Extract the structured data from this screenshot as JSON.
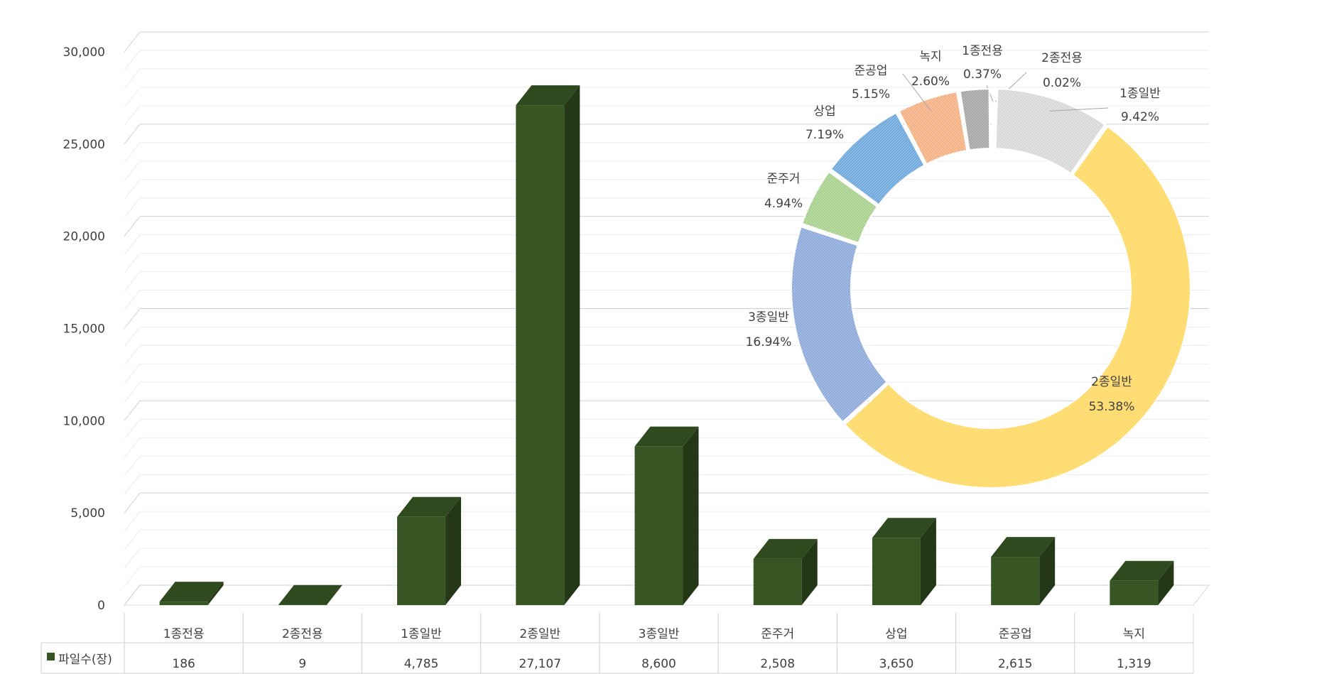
{
  "chart_data": [
    {
      "type": "bar",
      "style": "3d-column-with-data-table",
      "categories": [
        "1종전용",
        "2종전용",
        "1종일반",
        "2종일반",
        "3종일반",
        "준주거",
        "상업",
        "준공업",
        "녹지"
      ],
      "series": [
        {
          "name": "파일수(장)",
          "values": [
            186,
            9,
            4785,
            27107,
            8600,
            2508,
            3650,
            2615,
            1319
          ]
        }
      ],
      "value_labels": [
        "186",
        "9",
        "4,785",
        "27,107",
        "8,600",
        "2,508",
        "3,650",
        "2,615",
        "1,319"
      ],
      "ylim": [
        0,
        30000
      ],
      "yticks": [
        0,
        5000,
        10000,
        15000,
        20000,
        25000,
        30000
      ],
      "ytick_labels": [
        "0",
        "5,000",
        "10,000",
        "15,000",
        "20,000",
        "25,000",
        "30,000"
      ],
      "grid": true,
      "legend": "in-data-table",
      "colors": {
        "bar_front": "#375623",
        "bar_top": "#2f4a1e",
        "bar_side": "#243818"
      }
    },
    {
      "type": "pie",
      "style": "doughnut",
      "slices": [
        {
          "label": "1종전용",
          "value": 0.37,
          "pct": "0.37%",
          "color": "#9dc3e6"
        },
        {
          "label": "2종전용",
          "value": 0.02,
          "pct": "0.02%",
          "color": "#ddebf7"
        },
        {
          "label": "1종일반",
          "value": 9.42,
          "pct": "9.42%",
          "color": "#d9d9d9"
        },
        {
          "label": "2종일반",
          "value": 53.38,
          "pct": "53.38%",
          "color": "#ffd966"
        },
        {
          "label": "3종일반",
          "value": 16.94,
          "pct": "16.94%",
          "color": "#8eaadb"
        },
        {
          "label": "준주거",
          "value": 4.94,
          "pct": "4.94%",
          "color": "#a9d18e"
        },
        {
          "label": "상업",
          "value": 7.19,
          "pct": "7.19%",
          "color": "#6fa8dc"
        },
        {
          "label": "준공업",
          "value": 5.15,
          "pct": "5.15%",
          "color": "#f4b183"
        },
        {
          "label": "녹지",
          "value": 2.6,
          "pct": "2.60%",
          "color": "#a6a6a6"
        }
      ]
    }
  ]
}
